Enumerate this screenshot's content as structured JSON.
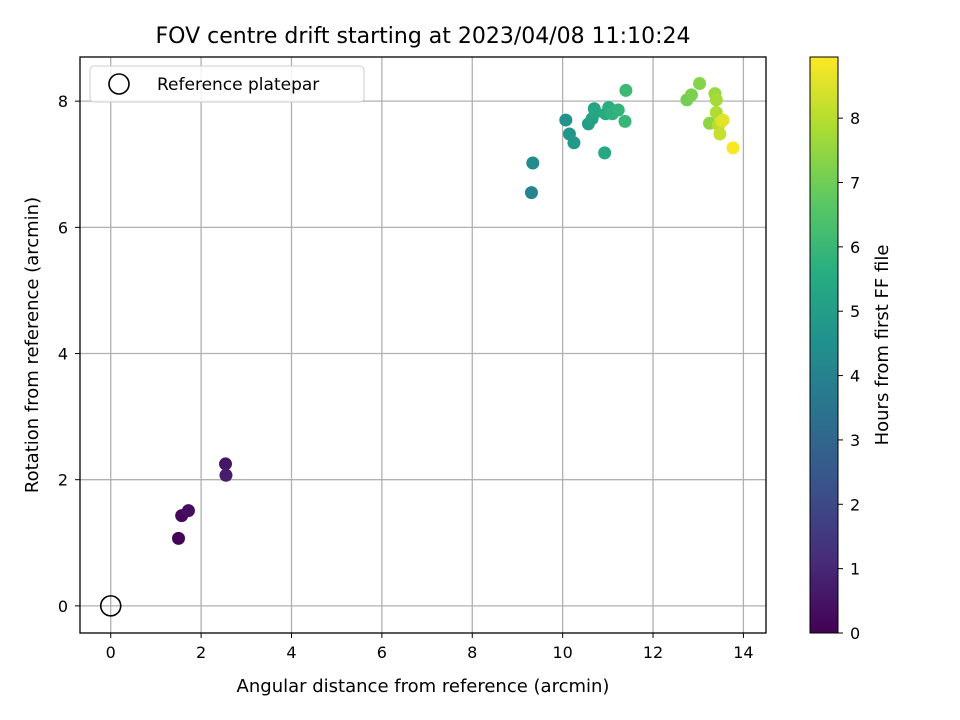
{
  "chart_data": {
    "type": "scatter",
    "title": "FOV centre drift starting at 2023/04/08 11:10:24",
    "xlabel": "Angular distance from reference (arcmin)",
    "ylabel": "Rotation from reference (arcmin)",
    "xlim": [
      -0.68,
      14.5
    ],
    "ylim": [
      -0.43,
      8.7
    ],
    "xticks": [
      0,
      2,
      4,
      6,
      8,
      10,
      12,
      14
    ],
    "yticks": [
      0,
      2,
      4,
      6,
      8
    ],
    "grid": true,
    "legend": {
      "position": "top-left",
      "entries": [
        "Reference platepar"
      ]
    },
    "reference_point": {
      "x": 0,
      "y": 0,
      "label": "Reference platepar"
    },
    "colorbar": {
      "label": "Hours from first FF file",
      "min": 0,
      "max": 8.95,
      "ticks": [
        0,
        1,
        2,
        3,
        4,
        5,
        6,
        7,
        8
      ],
      "colormap": "viridis"
    },
    "series": [
      {
        "name": "FOV centre",
        "points": [
          {
            "x": 1.5,
            "y": 1.07,
            "hours": 0.05
          },
          {
            "x": 1.57,
            "y": 1.43,
            "hours": 0.2
          },
          {
            "x": 1.72,
            "y": 1.51,
            "hours": 0.35
          },
          {
            "x": 2.54,
            "y": 2.25,
            "hours": 0.55
          },
          {
            "x": 2.55,
            "y": 2.07,
            "hours": 0.7
          },
          {
            "x": 9.31,
            "y": 6.55,
            "hours": 4.05
          },
          {
            "x": 9.34,
            "y": 7.02,
            "hours": 4.25
          },
          {
            "x": 10.07,
            "y": 7.7,
            "hours": 4.55
          },
          {
            "x": 10.15,
            "y": 7.48,
            "hours": 4.7
          },
          {
            "x": 10.25,
            "y": 7.34,
            "hours": 4.85
          },
          {
            "x": 10.57,
            "y": 7.64,
            "hours": 5.05
          },
          {
            "x": 10.65,
            "y": 7.72,
            "hours": 5.15
          },
          {
            "x": 10.7,
            "y": 7.88,
            "hours": 5.25
          },
          {
            "x": 10.72,
            "y": 7.82,
            "hours": 5.35
          },
          {
            "x": 10.93,
            "y": 7.18,
            "hours": 5.45
          },
          {
            "x": 10.95,
            "y": 7.8,
            "hours": 5.55
          },
          {
            "x": 11.02,
            "y": 7.9,
            "hours": 5.65
          },
          {
            "x": 11.1,
            "y": 7.8,
            "hours": 5.75
          },
          {
            "x": 11.23,
            "y": 7.86,
            "hours": 5.85
          },
          {
            "x": 11.38,
            "y": 7.68,
            "hours": 5.95
          },
          {
            "x": 11.4,
            "y": 8.17,
            "hours": 6.05
          },
          {
            "x": 12.75,
            "y": 8.02,
            "hours": 7.05
          },
          {
            "x": 12.85,
            "y": 8.1,
            "hours": 7.15
          },
          {
            "x": 13.03,
            "y": 8.28,
            "hours": 7.3
          },
          {
            "x": 13.25,
            "y": 7.65,
            "hours": 7.45
          },
          {
            "x": 13.37,
            "y": 8.12,
            "hours": 7.6
          },
          {
            "x": 13.4,
            "y": 8.02,
            "hours": 7.75
          },
          {
            "x": 13.4,
            "y": 7.82,
            "hours": 7.9
          },
          {
            "x": 13.45,
            "y": 7.62,
            "hours": 8.05
          },
          {
            "x": 13.48,
            "y": 7.48,
            "hours": 8.2
          },
          {
            "x": 13.52,
            "y": 7.68,
            "hours": 8.4
          },
          {
            "x": 13.55,
            "y": 7.7,
            "hours": 8.6
          },
          {
            "x": 13.77,
            "y": 7.26,
            "hours": 8.9
          }
        ]
      }
    ]
  }
}
